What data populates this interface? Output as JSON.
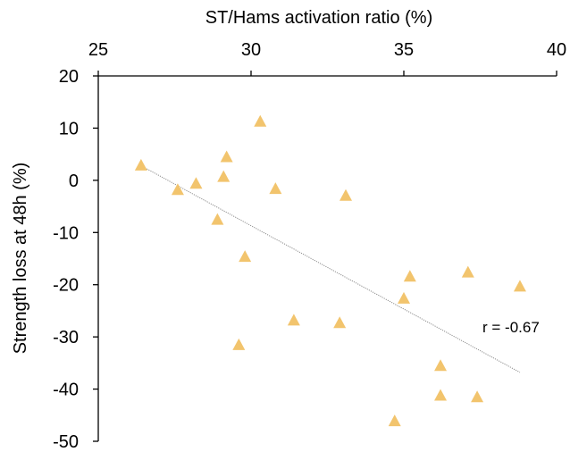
{
  "chart_data": {
    "type": "scatter",
    "xlabel": "ST/Hams activation ratio (%)",
    "ylabel": "Strength loss at 48h (%)",
    "xlim": [
      25,
      40
    ],
    "ylim": [
      -50,
      20
    ],
    "x_axis_position": "top",
    "x_ticks": [
      "25",
      "30",
      "35",
      "40"
    ],
    "y_ticks": [
      "20",
      "10",
      "0",
      "-10",
      "-20",
      "-30",
      "-40",
      "-50"
    ],
    "grid": false,
    "marker": "triangle",
    "marker_color": "#f2c46d",
    "trendline_color": "#8c8c8c",
    "annotation": "r = -0.67",
    "series": [
      {
        "points": [
          {
            "x": 26.4,
            "y": 3.0
          },
          {
            "x": 27.6,
            "y": -1.7
          },
          {
            "x": 28.2,
            "y": -0.5
          },
          {
            "x": 28.9,
            "y": -7.4
          },
          {
            "x": 29.1,
            "y": 0.8
          },
          {
            "x": 29.2,
            "y": 4.6
          },
          {
            "x": 29.6,
            "y": -31.4
          },
          {
            "x": 29.8,
            "y": -14.5
          },
          {
            "x": 30.3,
            "y": 11.4
          },
          {
            "x": 30.8,
            "y": -1.5
          },
          {
            "x": 31.4,
            "y": -26.7
          },
          {
            "x": 32.9,
            "y": -27.2
          },
          {
            "x": 33.1,
            "y": -2.8
          },
          {
            "x": 34.7,
            "y": -46.0
          },
          {
            "x": 35.0,
            "y": -22.5
          },
          {
            "x": 35.2,
            "y": -18.3
          },
          {
            "x": 36.2,
            "y": -41.1
          },
          {
            "x": 36.2,
            "y": -35.4
          },
          {
            "x": 37.1,
            "y": -17.5
          },
          {
            "x": 37.4,
            "y": -41.4
          },
          {
            "x": 38.8,
            "y": -20.2
          }
        ]
      }
    ],
    "trendline": {
      "x": [
        26.4,
        38.8
      ],
      "y": [
        2.8,
        -36.8
      ]
    }
  }
}
